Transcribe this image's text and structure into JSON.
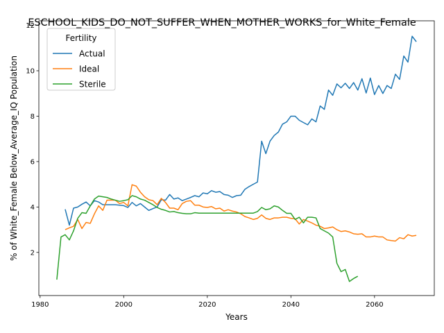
{
  "chart_data": {
    "type": "line",
    "title": "ESCHOOL_KIDS_DO_NOT_SUFFER_WHEN_MOTHER_WORKS_for_White_Female",
    "xlabel": "Years",
    "ylabel": "% of White_Female Below_Average_IQ Population",
    "xlim": [
      1979.7,
      2074.3
    ],
    "ylim": [
      0.1,
      12.2
    ],
    "xticks": [
      1980,
      2000,
      2020,
      2040,
      2060
    ],
    "yticks": [
      2,
      4,
      6,
      8,
      10,
      12
    ],
    "grid": false,
    "legend": {
      "title": "Fertility",
      "placement": "top-left"
    },
    "colors": {
      "Actual": "#1f77b4",
      "Ideal": "#ff7f0e",
      "Sterile": "#2ca02c"
    },
    "series": [
      {
        "name": "Actual",
        "x": [
          1986,
          1987,
          1988,
          1989,
          1990,
          1991,
          1992,
          1993,
          1994,
          1995,
          1996,
          1997,
          1998,
          1999,
          2000,
          2001,
          2002,
          2003,
          2004,
          2005,
          2006,
          2007,
          2008,
          2009,
          2010,
          2011,
          2012,
          2013,
          2014,
          2015,
          2016,
          2017,
          2018,
          2019,
          2020,
          2021,
          2022,
          2023,
          2024,
          2025,
          2026,
          2027,
          2028,
          2029,
          2030,
          2031,
          2032,
          2033,
          2034,
          2035,
          2036,
          2037,
          2038,
          2039,
          2040,
          2041,
          2042,
          2043,
          2044,
          2045,
          2046,
          2047,
          2048,
          2049,
          2050,
          2051,
          2052,
          2053,
          2054,
          2055,
          2056,
          2057,
          2058,
          2059,
          2060,
          2061,
          2062,
          2063,
          2064,
          2065,
          2066,
          2067,
          2068,
          2069,
          2070
        ],
        "y": [
          3.9,
          3.2,
          3.95,
          4.0,
          4.12,
          4.22,
          4.05,
          4.28,
          4.22,
          4.1,
          4.1,
          4.1,
          4.1,
          4.08,
          4.06,
          3.98,
          4.2,
          4.05,
          4.15,
          4.0,
          3.85,
          3.93,
          4.0,
          4.32,
          4.3,
          4.55,
          4.35,
          4.4,
          4.28,
          4.35,
          4.42,
          4.5,
          4.45,
          4.62,
          4.58,
          4.72,
          4.65,
          4.68,
          4.55,
          4.52,
          4.42,
          4.5,
          4.52,
          4.78,
          4.9,
          5.0,
          5.1,
          6.9,
          6.35,
          6.9,
          7.15,
          7.3,
          7.65,
          7.75,
          8.0,
          8.0,
          7.82,
          7.72,
          7.62,
          7.88,
          7.75,
          8.45,
          8.3,
          9.15,
          8.92,
          9.42,
          9.25,
          9.45,
          9.22,
          9.48,
          9.15,
          9.65,
          9.02,
          9.68,
          8.95,
          9.35,
          9.0,
          9.35,
          9.22,
          9.85,
          9.62,
          10.65,
          10.38,
          11.52,
          11.28
        ]
      },
      {
        "name": "Ideal",
        "x": [
          1986,
          1987,
          1988,
          1989,
          1990,
          1991,
          1992,
          1993,
          1994,
          1995,
          1996,
          1997,
          1998,
          1999,
          2000,
          2001,
          2002,
          2003,
          2004,
          2005,
          2006,
          2007,
          2008,
          2009,
          2010,
          2011,
          2012,
          2013,
          2014,
          2015,
          2016,
          2017,
          2018,
          2019,
          2020,
          2021,
          2022,
          2023,
          2024,
          2025,
          2026,
          2027,
          2028,
          2029,
          2030,
          2031,
          2032,
          2033,
          2034,
          2035,
          2036,
          2037,
          2038,
          2039,
          2040,
          2041,
          2042,
          2043,
          2044,
          2045,
          2046,
          2047,
          2048,
          2049,
          2050,
          2051,
          2052,
          2053,
          2054,
          2055,
          2056,
          2057,
          2058,
          2059,
          2060,
          2061,
          2062,
          2063,
          2064,
          2065,
          2066,
          2067,
          2068,
          2069,
          2070
        ],
        "y": [
          3.0,
          3.08,
          3.15,
          3.45,
          3.05,
          3.32,
          3.28,
          3.7,
          4.05,
          3.85,
          4.3,
          4.3,
          4.3,
          4.15,
          4.2,
          4.05,
          4.98,
          4.92,
          4.65,
          4.45,
          4.32,
          4.28,
          4.1,
          4.38,
          4.2,
          3.95,
          3.95,
          3.88,
          4.15,
          4.25,
          4.28,
          4.08,
          4.08,
          4.0,
          3.98,
          4.02,
          3.92,
          3.95,
          3.82,
          3.88,
          3.82,
          3.78,
          3.7,
          3.58,
          3.52,
          3.45,
          3.5,
          3.65,
          3.5,
          3.45,
          3.52,
          3.52,
          3.55,
          3.55,
          3.5,
          3.48,
          3.25,
          3.45,
          3.38,
          3.3,
          3.2,
          3.15,
          3.05,
          3.08,
          3.12,
          3.0,
          2.92,
          2.95,
          2.9,
          2.82,
          2.8,
          2.82,
          2.68,
          2.68,
          2.72,
          2.68,
          2.68,
          2.55,
          2.52,
          2.5,
          2.65,
          2.6,
          2.78,
          2.72,
          2.75
        ]
      },
      {
        "name": "Sterile",
        "x": [
          1984,
          1985,
          1986,
          1987,
          1988,
          1989,
          1990,
          1991,
          1992,
          1993,
          1994,
          1995,
          1996,
          1997,
          1998,
          1999,
          2000,
          2001,
          2002,
          2003,
          2004,
          2005,
          2006,
          2007,
          2008,
          2009,
          2010,
          2011,
          2012,
          2013,
          2014,
          2015,
          2016,
          2017,
          2018,
          2019,
          2020,
          2021,
          2022,
          2023,
          2024,
          2025,
          2026,
          2027,
          2028,
          2029,
          2030,
          2031,
          2032,
          2033,
          2034,
          2035,
          2036,
          2037,
          2038,
          2039,
          2040,
          2041,
          2042,
          2043,
          2044,
          2045,
          2046,
          2047,
          2048,
          2049,
          2050,
          2051,
          2052,
          2053,
          2054,
          2055,
          2056
        ],
        "y": [
          0.8,
          2.68,
          2.78,
          2.55,
          2.95,
          3.5,
          3.75,
          3.72,
          4.05,
          4.35,
          4.48,
          4.45,
          4.42,
          4.35,
          4.3,
          4.25,
          4.28,
          4.32,
          4.5,
          4.45,
          4.35,
          4.3,
          4.2,
          4.1,
          3.98,
          3.9,
          3.85,
          3.78,
          3.8,
          3.75,
          3.72,
          3.7,
          3.7,
          3.75,
          3.73,
          3.73,
          3.73,
          3.73,
          3.73,
          3.73,
          3.73,
          3.73,
          3.73,
          3.73,
          3.73,
          3.73,
          3.73,
          3.73,
          3.8,
          3.98,
          3.88,
          3.92,
          4.05,
          4.0,
          3.85,
          3.72,
          3.72,
          3.45,
          3.55,
          3.3,
          3.55,
          3.55,
          3.52,
          3.05,
          2.95,
          2.85,
          2.68,
          1.52,
          1.15,
          1.25,
          0.72,
          0.85,
          0.95
        ]
      }
    ]
  }
}
